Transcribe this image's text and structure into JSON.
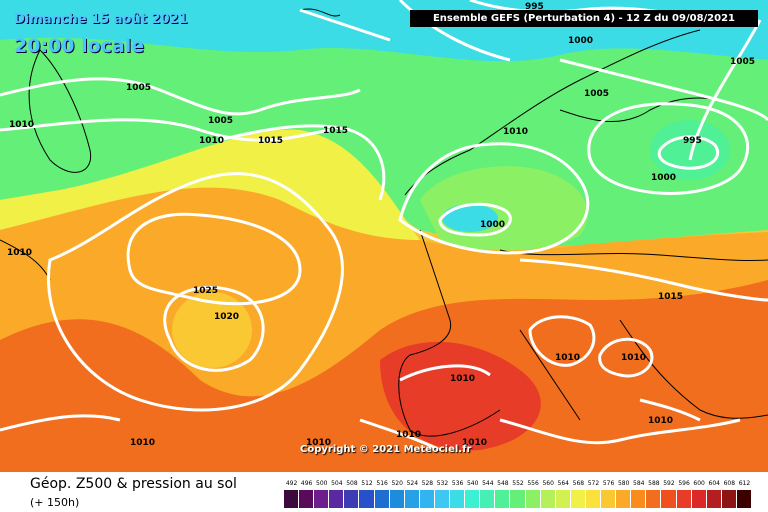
{
  "header": {
    "date": "Dimanche 15 août 2021",
    "time": "20:00 locale",
    "title": "Ensemble GEFS  (Perturbation 4)  - 12 Z du 09/08/2021"
  },
  "map": {
    "pressure_labels": [
      "995",
      "1000",
      "1005",
      "1005",
      "1005",
      "1005",
      "1010",
      "1010",
      "1010",
      "1015",
      "1015",
      "995",
      "1000",
      "1010",
      "1000",
      "1015",
      "1025",
      "1020",
      "1010",
      "1010",
      "1010",
      "1010",
      "1010",
      "1010",
      "1010",
      "1010"
    ],
    "copyright": "Copyright © 2021 Meteociel.fr"
  },
  "legend": {
    "title": "Géop. Z500 & pression au sol",
    "subtitle": "(+ 150h)",
    "scale": [
      "492",
      "496",
      "500",
      "504",
      "508",
      "512",
      "516",
      "520",
      "524",
      "528",
      "532",
      "536",
      "540",
      "544",
      "548",
      "552",
      "556",
      "560",
      "564",
      "568",
      "572",
      "576",
      "580",
      "584",
      "588",
      "592",
      "596",
      "600",
      "604",
      "608",
      "612"
    ],
    "colors": [
      "#3c0a3c",
      "#5a0a5a",
      "#6e1e8c",
      "#5a28a0",
      "#3c3cb4",
      "#2850c8",
      "#1e6ed2",
      "#1e8cdc",
      "#28a0e6",
      "#32b4f0",
      "#3cc8f0",
      "#3cdce6",
      "#3cf0d2",
      "#46f0b4",
      "#50f096",
      "#64f078",
      "#8cf064",
      "#b4f05a",
      "#d2f050",
      "#f0f046",
      "#fae13c",
      "#fac832",
      "#faaa28",
      "#fa8c1e",
      "#f06e1e",
      "#f0501e",
      "#e63c28",
      "#dc2828",
      "#b41e1e",
      "#8c1414",
      "#3c0000"
    ]
  }
}
